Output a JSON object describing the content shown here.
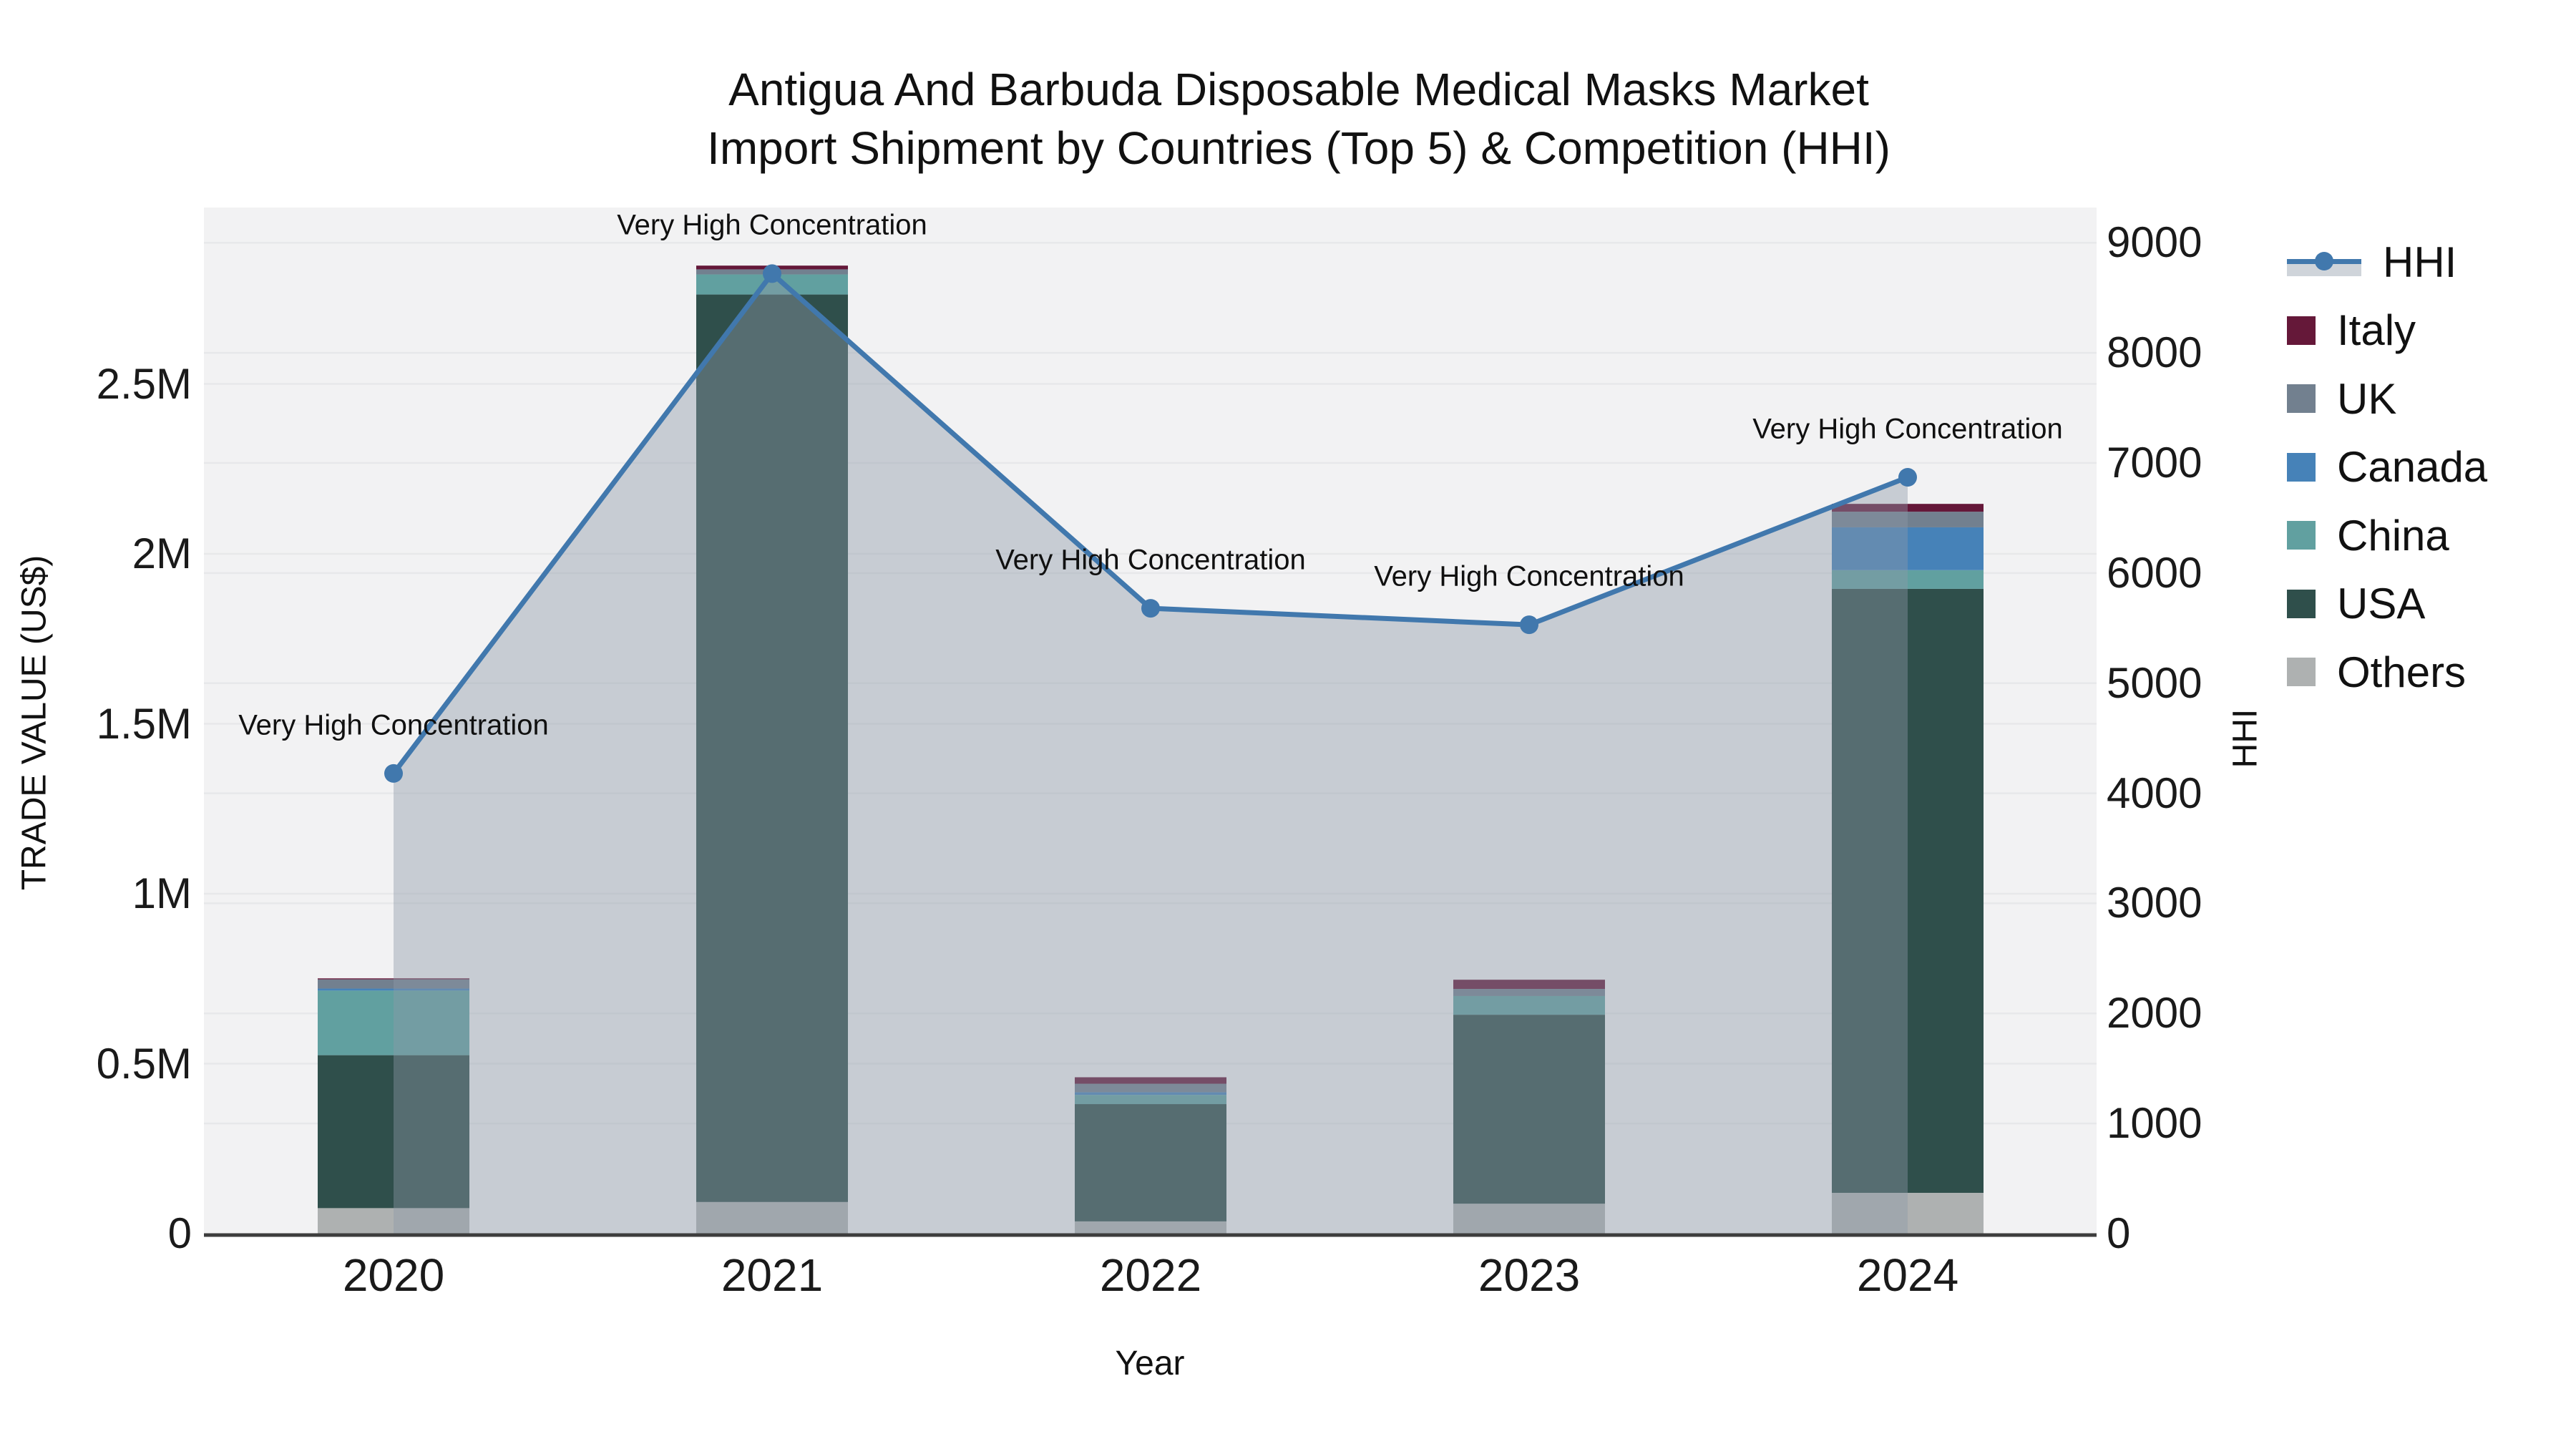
{
  "title": {
    "line1": "Antigua And Barbuda Disposable Medical Masks Market",
    "line2": "Import Shipment by Countries (Top 5) & Competition (HHI)"
  },
  "axes": {
    "x": {
      "title": "Year",
      "ticks": [
        "2020",
        "2021",
        "2022",
        "2023",
        "2024"
      ]
    },
    "y_left": {
      "title": "TRADE VALUE (US$)",
      "ticks": [
        {
          "label": "0",
          "value": 0
        },
        {
          "label": "0.5M",
          "value": 500000
        },
        {
          "label": "1M",
          "value": 1000000
        },
        {
          "label": "1.5M",
          "value": 1500000
        },
        {
          "label": "2M",
          "value": 2000000
        },
        {
          "label": "2.5M",
          "value": 2500000
        }
      ],
      "range": [
        0,
        3020000
      ]
    },
    "y_right": {
      "title": "HHI",
      "ticks": [
        {
          "label": "0",
          "value": 0
        },
        {
          "label": "1000",
          "value": 1000
        },
        {
          "label": "2000",
          "value": 2000
        },
        {
          "label": "3000",
          "value": 3000
        },
        {
          "label": "4000",
          "value": 4000
        },
        {
          "label": "5000",
          "value": 5000
        },
        {
          "label": "6000",
          "value": 6000
        },
        {
          "label": "7000",
          "value": 7000
        },
        {
          "label": "8000",
          "value": 8000
        },
        {
          "label": "9000",
          "value": 9000
        }
      ],
      "range": [
        0,
        9320
      ]
    }
  },
  "legend": {
    "items": [
      {
        "label": "HHI",
        "type": "line",
        "color": "#4178ad"
      },
      {
        "label": "Italy",
        "type": "square",
        "color": "#651839"
      },
      {
        "label": "UK",
        "type": "square",
        "color": "#72808f"
      },
      {
        "label": "Canada",
        "type": "square",
        "color": "#4682b8"
      },
      {
        "label": "China",
        "type": "square",
        "color": "#61a0a0"
      },
      {
        "label": "USA",
        "type": "square",
        "color": "#2f4f4b"
      },
      {
        "label": "Others",
        "type": "square",
        "color": "#aeb1b1"
      }
    ]
  },
  "chart_data": {
    "type": "combo",
    "bar_type": "stacked-bar",
    "line_type": "line-area",
    "title": "Antigua And Barbuda Disposable Medical Masks Market Import Shipment by Countries (Top 5) & Competition (HHI)",
    "xlabel": "Year",
    "ylabel_left": "TRADE VALUE (US$)",
    "ylabel_right": "HHI",
    "ylim_left": [
      0,
      3020000
    ],
    "ylim_right": [
      0,
      9320
    ],
    "grid": true,
    "legend_position": "right",
    "categories": [
      "2020",
      "2021",
      "2022",
      "2023",
      "2024"
    ],
    "bar_series": [
      {
        "name": "Others",
        "color": "#aeb1b1",
        "values_usd": [
          75000,
          93000,
          36000,
          88000,
          120000
        ]
      },
      {
        "name": "USA",
        "color": "#2f4f4b",
        "values_usd": [
          450000,
          2670000,
          345000,
          556000,
          1777000
        ]
      },
      {
        "name": "China",
        "color": "#61a0a0",
        "values_usd": [
          190000,
          59000,
          27000,
          55000,
          55000
        ]
      },
      {
        "name": "Canada",
        "color": "#4682b8",
        "values_usd": [
          6000,
          0,
          8000,
          0,
          126000
        ]
      },
      {
        "name": "UK",
        "color": "#72808f",
        "values_usd": [
          27000,
          15000,
          25000,
          21000,
          46000
        ]
      },
      {
        "name": "Italy",
        "color": "#651839",
        "values_usd": [
          3000,
          11000,
          19000,
          27000,
          23000
        ]
      }
    ],
    "bar_totals_usd": [
      751000,
      2848000,
      460000,
      747000,
      2147000
    ],
    "line_series": {
      "name": "HHI",
      "color": "#4178ad",
      "area_fill": "rgba(141,153,168,0.42)",
      "values": [
        4180,
        8720,
        5680,
        5530,
        6870
      ]
    },
    "annotations": [
      {
        "category": "2020",
        "text": "Very High Concentration"
      },
      {
        "category": "2021",
        "text": "Very High Concentration"
      },
      {
        "category": "2022",
        "text": "Very High Concentration"
      },
      {
        "category": "2023",
        "text": "Very High Concentration"
      },
      {
        "category": "2024",
        "text": "Very High Concentration"
      }
    ]
  },
  "plot": {
    "background": "#f2f2f3",
    "grid_color": "#e7e8ea",
    "axis_line_color": "#3d3d3d",
    "text_color": "#111111"
  }
}
